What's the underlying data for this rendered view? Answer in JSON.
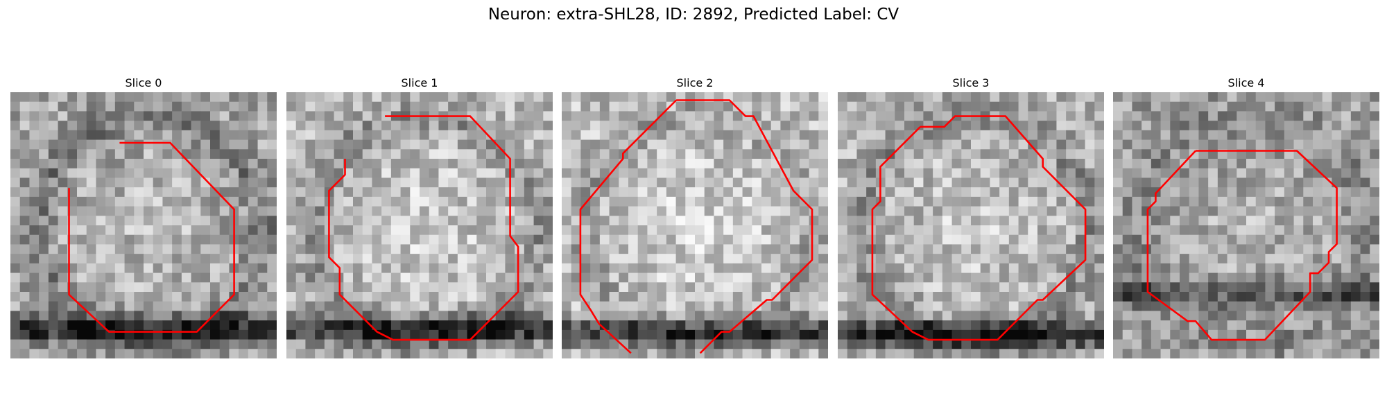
{
  "figure": {
    "title": "Neuron: extra-SHL28, ID: 2892, Predicted Label: CV",
    "contour_color": "#ff0000",
    "colormap": "gray"
  },
  "panels": [
    {
      "title": "Slice 0",
      "seed": 11,
      "shading": {
        "base": 0.65,
        "stripe_y": 0.89,
        "stripe_strength": 0.5,
        "ring_strength": 0.18
      },
      "contour": [
        [
          0.41,
          0.19
        ],
        [
          0.6,
          0.19
        ],
        [
          0.84,
          0.44
        ],
        [
          0.84,
          0.76
        ],
        [
          0.7,
          0.9
        ],
        [
          0.37,
          0.9
        ],
        [
          0.22,
          0.76
        ],
        [
          0.22,
          0.36
        ]
      ]
    },
    {
      "title": "Slice 1",
      "seed": 23,
      "shading": {
        "base": 0.72,
        "stripe_y": 0.89,
        "stripe_strength": 0.55,
        "ring_strength": 0.15
      },
      "contour": [
        [
          0.37,
          0.09
        ],
        [
          0.69,
          0.09
        ],
        [
          0.84,
          0.25
        ],
        [
          0.84,
          0.54
        ],
        [
          0.87,
          0.58
        ],
        [
          0.87,
          0.75
        ],
        [
          0.69,
          0.93
        ],
        [
          0.4,
          0.93
        ],
        [
          0.34,
          0.9
        ],
        [
          0.2,
          0.76
        ],
        [
          0.2,
          0.66
        ],
        [
          0.16,
          0.62
        ],
        [
          0.16,
          0.37
        ],
        [
          0.22,
          0.31
        ],
        [
          0.22,
          0.25
        ]
      ]
    },
    {
      "title": "Slice 2",
      "seed": 37,
      "shading": {
        "base": 0.74,
        "stripe_y": 0.9,
        "stripe_strength": 0.5,
        "ring_strength": 0.12
      },
      "contour": [
        [
          0.43,
          0.03
        ],
        [
          0.63,
          0.03
        ],
        [
          0.69,
          0.09
        ],
        [
          0.72,
          0.09
        ],
        [
          0.87,
          0.37
        ],
        [
          0.94,
          0.44
        ],
        [
          0.94,
          0.63
        ],
        [
          0.79,
          0.78
        ],
        [
          0.77,
          0.78
        ],
        [
          0.63,
          0.9
        ],
        [
          0.6,
          0.9
        ],
        [
          0.52,
          0.98
        ],
        [
          null,
          null
        ],
        [
          0.26,
          0.98
        ],
        [
          0.14,
          0.87
        ],
        [
          0.11,
          0.82
        ],
        [
          0.07,
          0.76
        ],
        [
          0.07,
          0.44
        ],
        [
          0.23,
          0.25
        ],
        [
          0.23,
          0.23
        ],
        [
          0.43,
          0.03
        ]
      ]
    },
    {
      "title": "Slice 3",
      "seed": 53,
      "shading": {
        "base": 0.7,
        "stripe_y": 0.91,
        "stripe_strength": 0.55,
        "ring_strength": 0.15
      },
      "contour": [
        [
          0.31,
          0.13
        ],
        [
          0.4,
          0.13
        ],
        [
          0.44,
          0.09
        ],
        [
          0.63,
          0.09
        ],
        [
          0.77,
          0.25
        ],
        [
          0.77,
          0.28
        ],
        [
          0.93,
          0.44
        ],
        [
          0.93,
          0.63
        ],
        [
          0.77,
          0.78
        ],
        [
          0.75,
          0.78
        ],
        [
          0.6,
          0.93
        ],
        [
          0.34,
          0.93
        ],
        [
          0.28,
          0.9
        ],
        [
          0.13,
          0.76
        ],
        [
          0.13,
          0.44
        ],
        [
          0.16,
          0.41
        ],
        [
          0.16,
          0.28
        ],
        [
          0.28,
          0.16
        ],
        [
          0.31,
          0.13
        ]
      ]
    },
    {
      "title": "Slice 4",
      "seed": 71,
      "shading": {
        "base": 0.62,
        "stripe_y": 0.76,
        "stripe_strength": 0.3,
        "ring_strength": 0.08
      },
      "contour": [
        [
          0.31,
          0.22
        ],
        [
          0.69,
          0.22
        ],
        [
          0.84,
          0.36
        ],
        [
          0.84,
          0.57
        ],
        [
          0.81,
          0.6
        ],
        [
          0.81,
          0.64
        ],
        [
          0.77,
          0.68
        ],
        [
          0.74,
          0.68
        ],
        [
          0.74,
          0.75
        ],
        [
          0.57,
          0.93
        ],
        [
          0.37,
          0.93
        ],
        [
          0.31,
          0.86
        ],
        [
          0.28,
          0.86
        ],
        [
          0.13,
          0.75
        ],
        [
          0.13,
          0.44
        ],
        [
          0.16,
          0.41
        ],
        [
          0.16,
          0.38
        ],
        [
          0.31,
          0.22
        ]
      ]
    }
  ]
}
